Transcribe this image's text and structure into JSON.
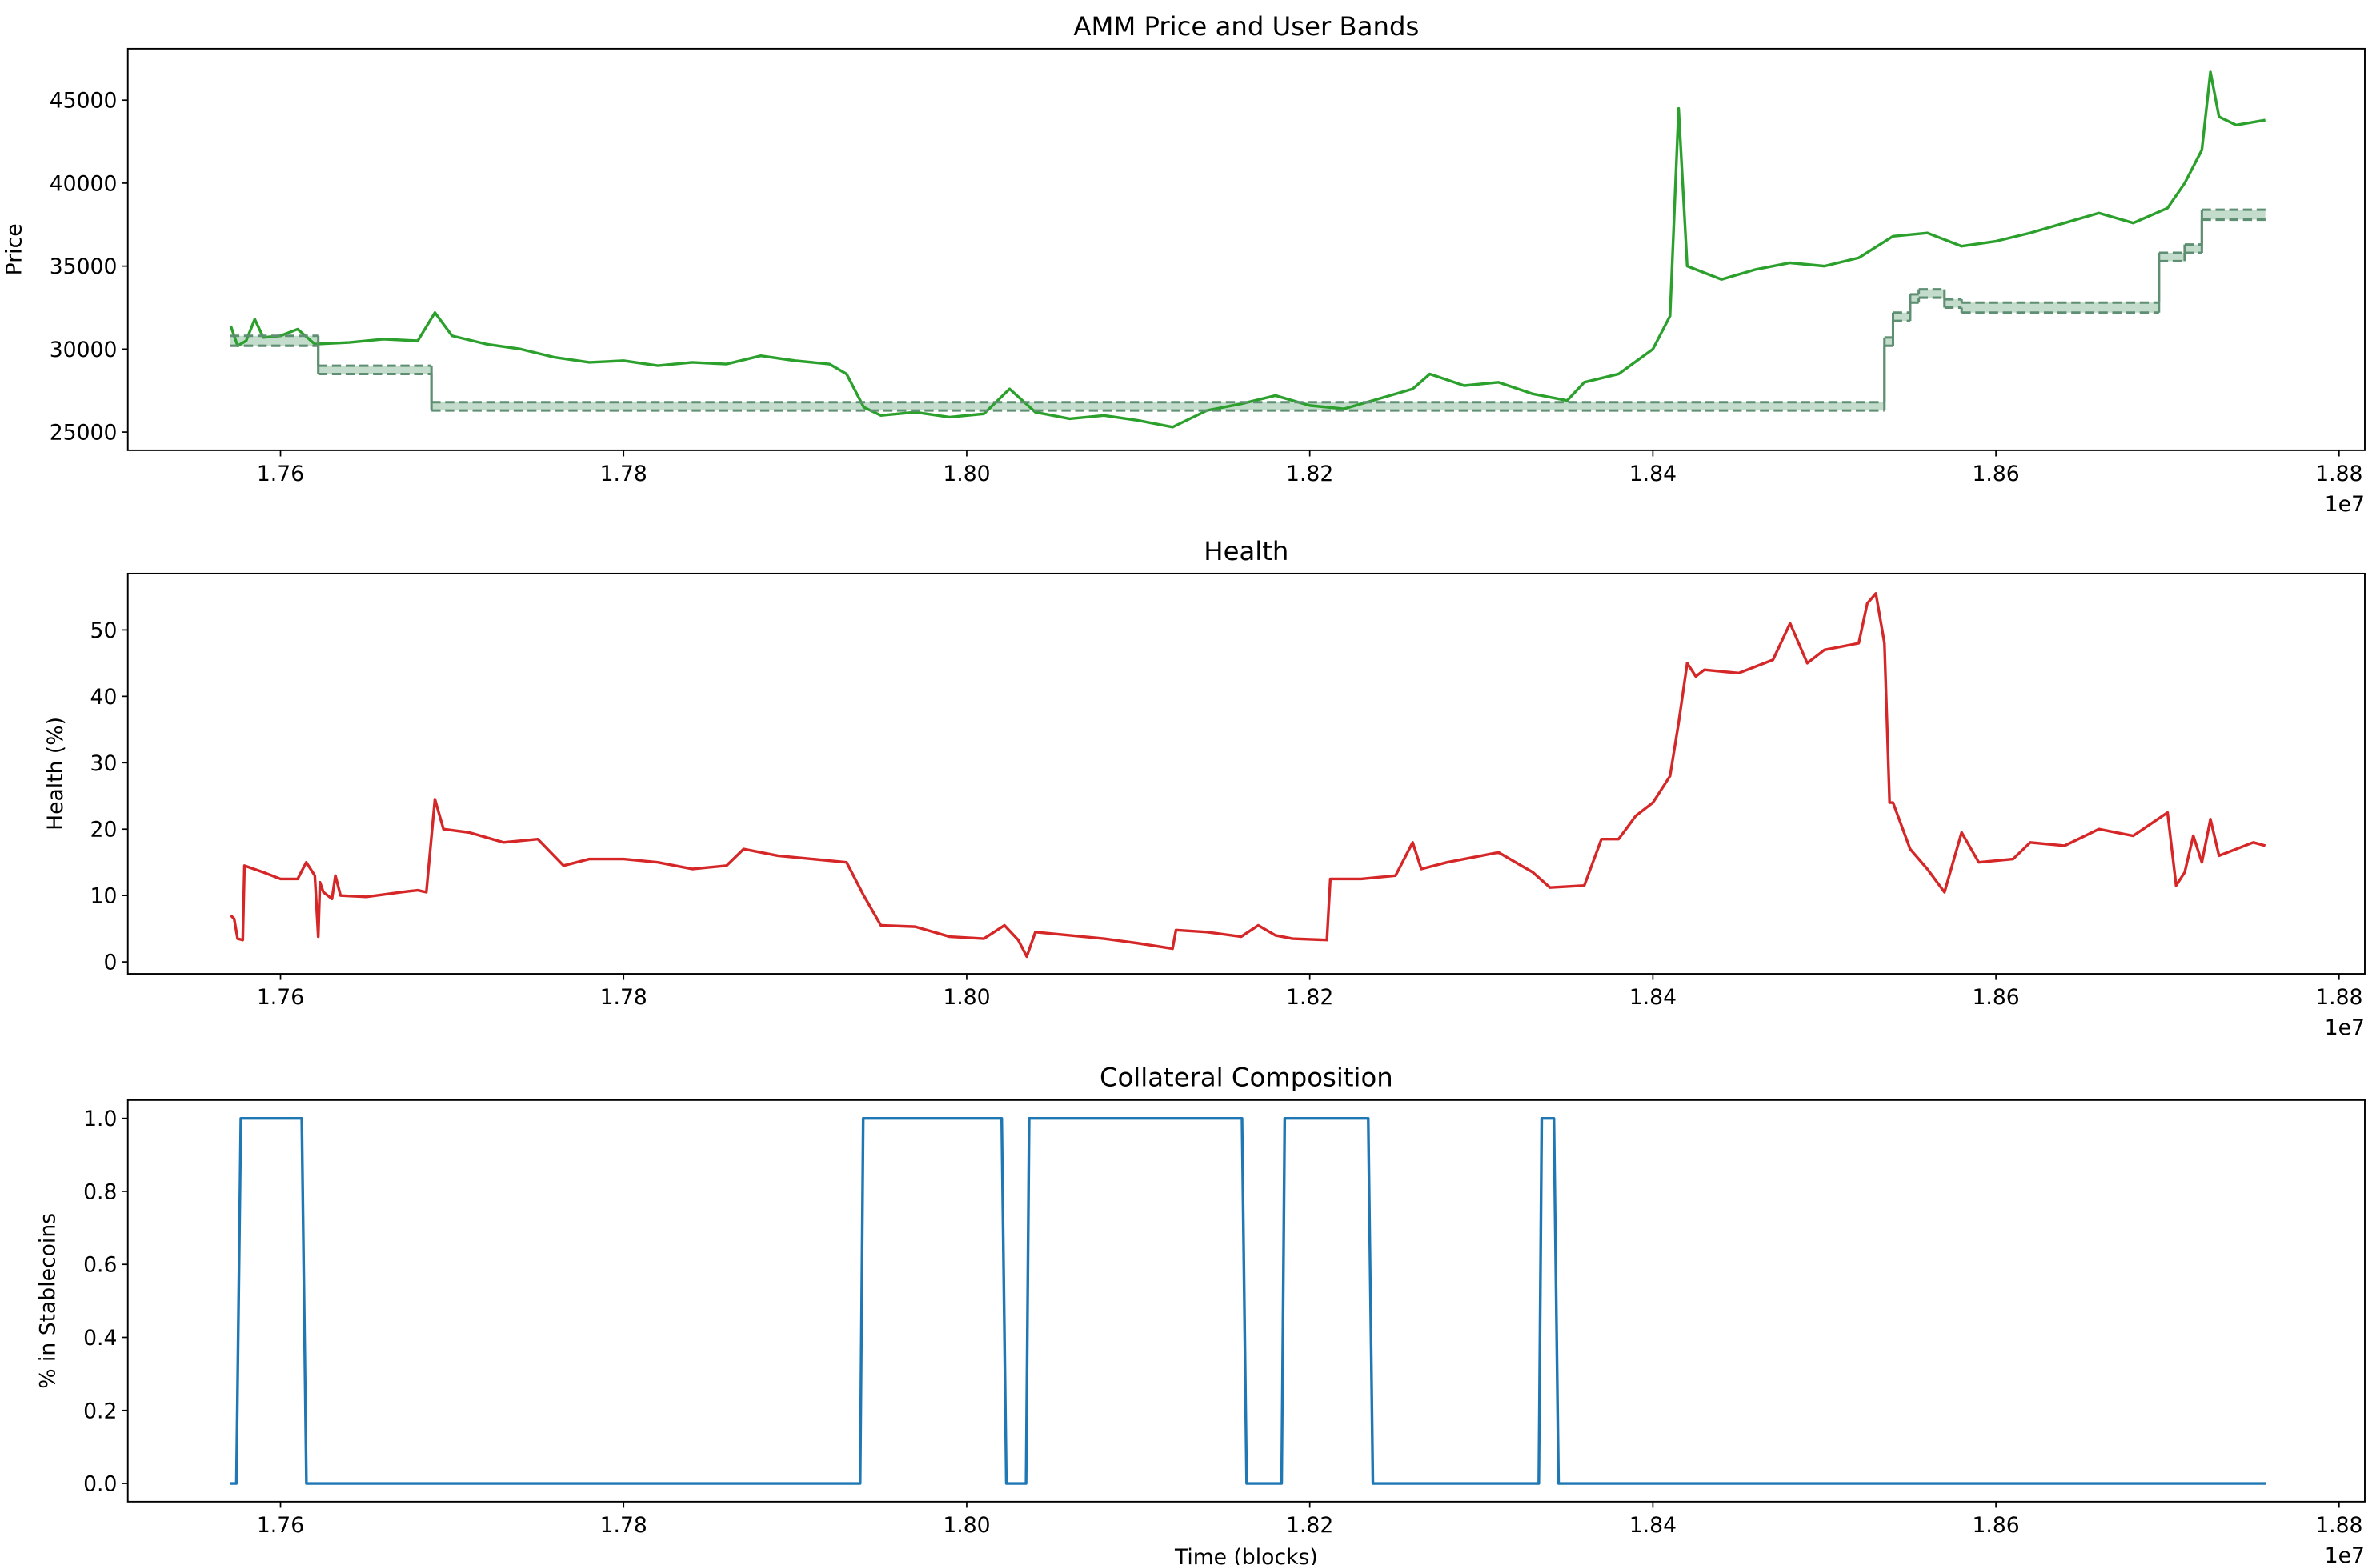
{
  "chart_data": [
    {
      "type": "line",
      "title": "AMM Price and User Bands",
      "ylabel": "Price",
      "x_offset_label": "1e7",
      "xlim": [
        17511000,
        18815000
      ],
      "ylim": [
        23900,
        48100
      ],
      "xticks": [
        {
          "value": 17600000,
          "label": "1.76"
        },
        {
          "value": 17800000,
          "label": "1.78"
        },
        {
          "value": 18000000,
          "label": "1.80"
        },
        {
          "value": 18200000,
          "label": "1.82"
        },
        {
          "value": 18400000,
          "label": "1.84"
        },
        {
          "value": 18600000,
          "label": "1.86"
        },
        {
          "value": 18800000,
          "label": "1.88"
        }
      ],
      "yticks": [
        25000,
        30000,
        35000,
        40000,
        45000
      ],
      "band_fill": "#b5d3bf",
      "series": [
        {
          "color": "#2ca02c",
          "x": [
            17571000,
            17575000,
            17580000,
            17585000,
            17590000,
            17600000,
            17610000,
            17620000,
            17640000,
            17660000,
            17680000,
            17690000,
            17700000,
            17720000,
            17740000,
            17760000,
            17780000,
            17800000,
            17820000,
            17840000,
            17860000,
            17880000,
            17900000,
            17920000,
            17930000,
            17940000,
            17950000,
            17970000,
            17990000,
            18010000,
            18025000,
            18040000,
            18060000,
            18080000,
            18100000,
            18120000,
            18140000,
            18160000,
            18180000,
            18200000,
            18220000,
            18240000,
            18260000,
            18270000,
            18290000,
            18310000,
            18330000,
            18350000,
            18360000,
            18380000,
            18400000,
            18410000,
            18415000,
            18420000,
            18440000,
            18460000,
            18480000,
            18500000,
            18520000,
            18540000,
            18560000,
            18580000,
            18600000,
            18620000,
            18640000,
            18660000,
            18680000,
            18700000,
            18710000,
            18720000,
            18725000,
            18730000,
            18740000,
            18757000
          ],
          "values": [
            31400,
            30200,
            30500,
            31800,
            30700,
            30800,
            31200,
            30300,
            30400,
            30600,
            30500,
            32200,
            30800,
            30300,
            30000,
            29500,
            29200,
            29300,
            29000,
            29200,
            29100,
            29600,
            29300,
            29100,
            28500,
            26500,
            26000,
            26200,
            25900,
            26100,
            27600,
            26200,
            25800,
            26000,
            25700,
            25300,
            26300,
            26700,
            27200,
            26600,
            26400,
            27000,
            27600,
            28500,
            27800,
            28000,
            27300,
            26900,
            28000,
            28500,
            30000,
            32000,
            44500,
            35000,
            34200,
            34800,
            35200,
            35000,
            35500,
            36800,
            37000,
            36200,
            36500,
            37000,
            37600,
            38200,
            37600,
            38500,
            40000,
            42000,
            46700,
            44000,
            43500,
            43800
          ]
        },
        {
          "color": "#5f8f72",
          "linestyle": "dashed",
          "drawstyle": "steps-post",
          "x": [
            17570700,
            17622000,
            17688000,
            18535000,
            18540000,
            18550000,
            18555000,
            18570000,
            18580000,
            18695000,
            18710000,
            18720000,
            18757000
          ],
          "values": [
            30800,
            29000,
            26800,
            30700,
            32200,
            33300,
            33600,
            33000,
            32800,
            35800,
            36300,
            38400,
            38400
          ]
        },
        {
          "color": "#5f8f72",
          "linestyle": "dashed",
          "drawstyle": "steps-post",
          "x": [
            17570700,
            17622000,
            17688000,
            18535000,
            18540000,
            18550000,
            18555000,
            18570000,
            18580000,
            18695000,
            18710000,
            18720000,
            18757000
          ],
          "values": [
            30200,
            28500,
            26300,
            30200,
            31700,
            32800,
            33100,
            32500,
            32200,
            35300,
            35800,
            37800,
            37800
          ]
        }
      ]
    },
    {
      "type": "line",
      "title": "Health",
      "ylabel": "Health (%)",
      "x_offset_label": "1e7",
      "xlim": [
        17511000,
        18815000
      ],
      "ylim": [
        -1.8,
        58.5
      ],
      "xticks": [
        {
          "value": 17600000,
          "label": "1.76"
        },
        {
          "value": 17800000,
          "label": "1.78"
        },
        {
          "value": 18000000,
          "label": "1.80"
        },
        {
          "value": 18200000,
          "label": "1.82"
        },
        {
          "value": 18400000,
          "label": "1.84"
        },
        {
          "value": 18600000,
          "label": "1.86"
        },
        {
          "value": 18800000,
          "label": "1.88"
        }
      ],
      "yticks": [
        0,
        10,
        20,
        30,
        40,
        50
      ],
      "series": [
        {
          "color": "#d62728",
          "x": [
            17571000,
            17573000,
            17575000,
            17578000,
            17579000,
            17590000,
            17600000,
            17610000,
            17615000,
            17620000,
            17622000,
            17623000,
            17625000,
            17630000,
            17632000,
            17635000,
            17650000,
            17670000,
            17680000,
            17685000,
            17690000,
            17695000,
            17710000,
            17730000,
            17750000,
            17765000,
            17780000,
            17800000,
            17820000,
            17840000,
            17860000,
            17870000,
            17890000,
            17910000,
            17930000,
            17940000,
            17950000,
            17970000,
            17990000,
            18010000,
            18022000,
            18030000,
            18035000,
            18040000,
            18060000,
            18080000,
            18100000,
            18120000,
            18122000,
            18140000,
            18160000,
            18170000,
            18180000,
            18190000,
            18210000,
            18212000,
            18230000,
            18250000,
            18260000,
            18265000,
            18280000,
            18300000,
            18310000,
            18330000,
            18340000,
            18360000,
            18370000,
            18380000,
            18390000,
            18400000,
            18410000,
            18415000,
            18420000,
            18425000,
            18430000,
            18450000,
            18470000,
            18480000,
            18490000,
            18500000,
            18520000,
            18525000,
            18530000,
            18535000,
            18538000,
            18540000,
            18550000,
            18560000,
            18570000,
            18580000,
            18590000,
            18610000,
            18620000,
            18640000,
            18660000,
            18680000,
            18700000,
            18705000,
            18710000,
            18715000,
            18720000,
            18725000,
            18730000,
            18750000,
            18757000
          ],
          "values": [
            7,
            6.5,
            3.5,
            3.3,
            14.5,
            13.5,
            12.5,
            12.5,
            15,
            13,
            3.8,
            12,
            10.5,
            9.5,
            13,
            10,
            9.8,
            10.5,
            10.8,
            10.5,
            24.5,
            20,
            19.5,
            18,
            18.5,
            14.5,
            15.5,
            15.5,
            15,
            14,
            14.5,
            17,
            16,
            15.5,
            15,
            10,
            5.5,
            5.3,
            3.8,
            3.5,
            5.5,
            3.3,
            0.8,
            4.5,
            4,
            3.5,
            2.8,
            2,
            4.8,
            4.5,
            3.8,
            5.5,
            4,
            3.5,
            3.3,
            12.5,
            12.5,
            13,
            18,
            14,
            15,
            16,
            16.5,
            13.5,
            11.2,
            11.5,
            18.5,
            18.5,
            22,
            24,
            28,
            36,
            45,
            43,
            44,
            43.5,
            45.5,
            51,
            45,
            47,
            48,
            54,
            55.5,
            48,
            24,
            24,
            17,
            14,
            10.5,
            19.5,
            15,
            15.5,
            18,
            17.5,
            20,
            19,
            22.5,
            11.5,
            13.5,
            19,
            15,
            21.5,
            16,
            18,
            17.5
          ]
        }
      ]
    },
    {
      "type": "line",
      "title": "Collateral Composition",
      "ylabel": "% in Stablecoins",
      "xlabel": "Time (blocks)",
      "x_offset_label": "1e7",
      "xlim": [
        17511000,
        18815000
      ],
      "ylim": [
        -0.05,
        1.05
      ],
      "xticks": [
        {
          "value": 17600000,
          "label": "1.76"
        },
        {
          "value": 17800000,
          "label": "1.78"
        },
        {
          "value": 18000000,
          "label": "1.80"
        },
        {
          "value": 18200000,
          "label": "1.82"
        },
        {
          "value": 18400000,
          "label": "1.84"
        },
        {
          "value": 18600000,
          "label": "1.86"
        },
        {
          "value": 18800000,
          "label": "1.88"
        }
      ],
      "yticks": [
        {
          "value": 0,
          "label": "0.0"
        },
        {
          "value": 0.2,
          "label": "0.2"
        },
        {
          "value": 0.4,
          "label": "0.4"
        },
        {
          "value": 0.6,
          "label": "0.6"
        },
        {
          "value": 0.8,
          "label": "0.8"
        },
        {
          "value": 1,
          "label": "1.0"
        }
      ],
      "series": [
        {
          "color": "#1f77b4",
          "x": [
            17570700,
            17574300,
            17576900,
            17612400,
            17615100,
            17937900,
            17939700,
            18020400,
            18023100,
            18034600,
            18036400,
            18160500,
            18163200,
            18183600,
            18185400,
            18234100,
            18236800,
            18333500,
            18335200,
            18342300,
            18345000,
            18757400
          ],
          "values": [
            0,
            0,
            1,
            1,
            0,
            0,
            1,
            1,
            0,
            0,
            1,
            1,
            0,
            0,
            1,
            1,
            0,
            0,
            1,
            1,
            0,
            0
          ]
        }
      ]
    }
  ]
}
